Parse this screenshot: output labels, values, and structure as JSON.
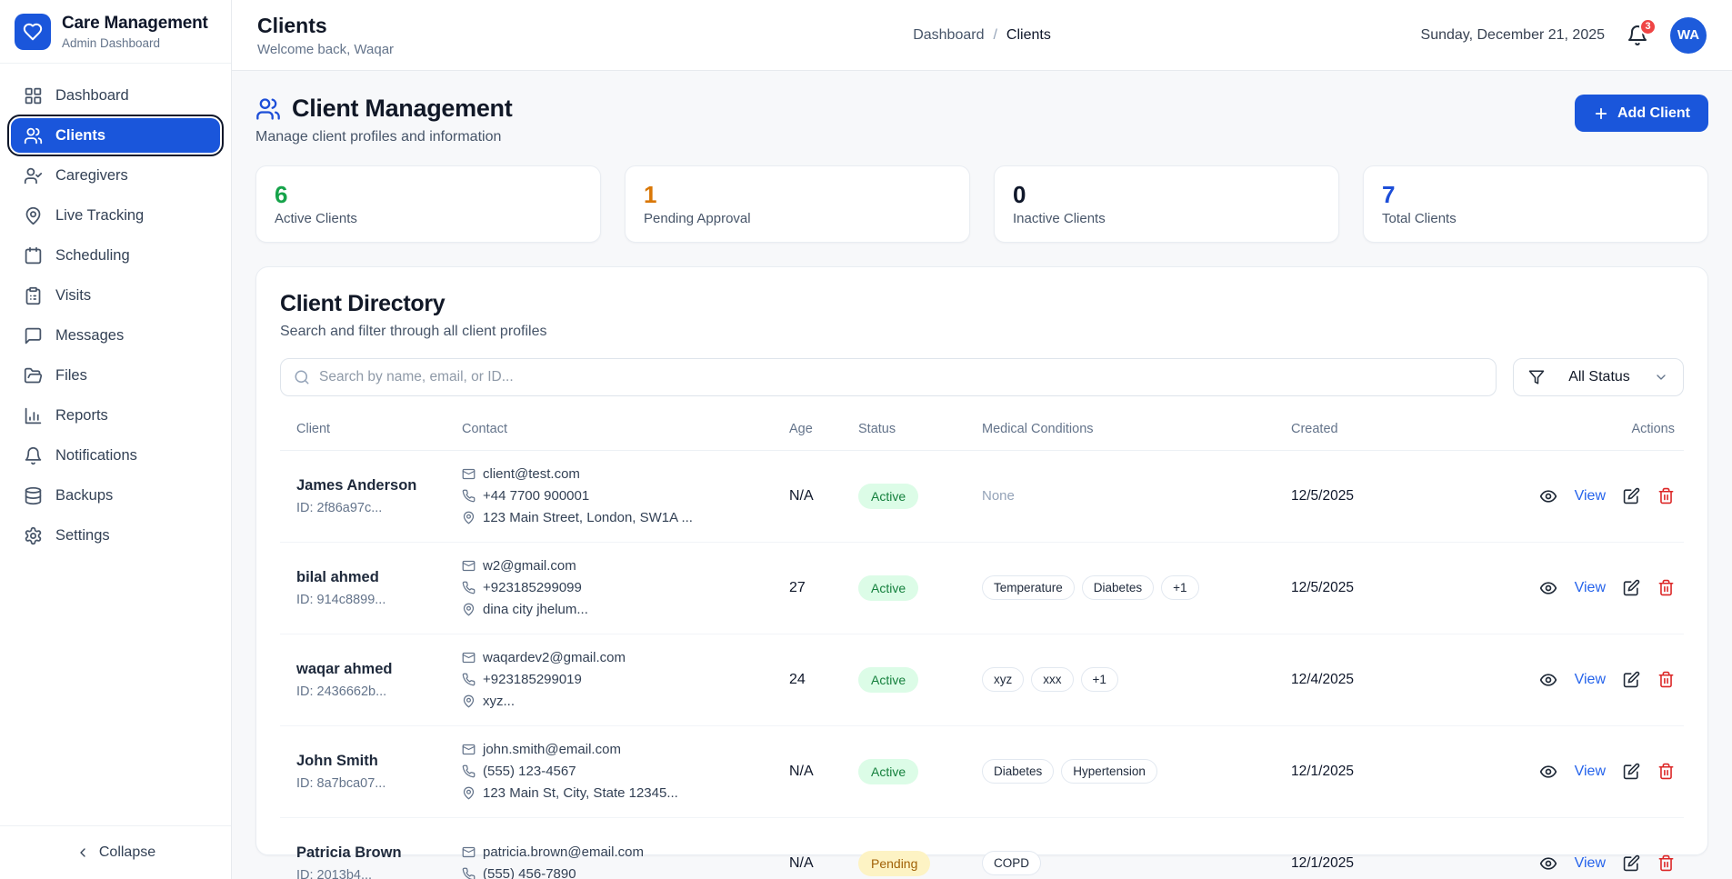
{
  "brand": {
    "name": "Care Management",
    "subtitle": "Admin Dashboard"
  },
  "sidebar": {
    "items": [
      {
        "label": "Dashboard"
      },
      {
        "label": "Clients"
      },
      {
        "label": "Caregivers"
      },
      {
        "label": "Live Tracking"
      },
      {
        "label": "Scheduling"
      },
      {
        "label": "Visits"
      },
      {
        "label": "Messages"
      },
      {
        "label": "Files"
      },
      {
        "label": "Reports"
      },
      {
        "label": "Notifications"
      },
      {
        "label": "Backups"
      },
      {
        "label": "Settings"
      }
    ],
    "active_item": "Clients",
    "collapse_label": "Collapse"
  },
  "header": {
    "title": "Clients",
    "subtitle": "Welcome back, Waqar",
    "breadcrumb": {
      "parent": "Dashboard",
      "separator": "/",
      "current": "Clients"
    },
    "date": "Sunday, December 21, 2025",
    "notification_count": "3",
    "avatar_initials": "WA"
  },
  "page": {
    "title": "Client Management",
    "subtitle": "Manage client profiles and information",
    "add_button_label": "Add Client"
  },
  "stats": [
    {
      "value": "6",
      "label": "Active Clients",
      "color": "#16a34a"
    },
    {
      "value": "1",
      "label": "Pending Approval",
      "color": "#d97706"
    },
    {
      "value": "0",
      "label": "Inactive Clients",
      "color": "#0f172a"
    },
    {
      "value": "7",
      "label": "Total Clients",
      "color": "#1d4ed8"
    }
  ],
  "directory": {
    "title": "Client Directory",
    "subtitle": "Search and filter through all client profiles",
    "search_placeholder": "Search by name, email, or ID...",
    "filter_label": "All Status"
  },
  "table": {
    "headers": [
      "Client",
      "Contact",
      "Age",
      "Status",
      "Medical Conditions",
      "Created",
      "Actions"
    ],
    "view_label": "View",
    "rows": [
      {
        "name": "James Anderson",
        "id": "ID: 2f86a97c...",
        "email": "client@test.com",
        "phone": "+44 7700 900001",
        "address": "123 Main Street, London, SW1A ...",
        "age": "N/A",
        "status": "Active",
        "conditions": [],
        "conditions_empty": "None",
        "created": "12/5/2025"
      },
      {
        "name": "bilal ahmed",
        "id": "ID: 914c8899...",
        "email": "w2@gmail.com",
        "phone": "+923185299099",
        "address": "dina city jhelum...",
        "age": "27",
        "status": "Active",
        "conditions": [
          "Temperature",
          "Diabetes",
          "+1"
        ],
        "created": "12/5/2025"
      },
      {
        "name": "waqar ahmed",
        "id": "ID: 2436662b...",
        "email": "waqardev2@gmail.com",
        "phone": "+923185299019",
        "address": "xyz...",
        "age": "24",
        "status": "Active",
        "conditions": [
          "xyz",
          "xxx",
          "+1"
        ],
        "created": "12/4/2025"
      },
      {
        "name": "John Smith",
        "id": "ID: 8a7bca07...",
        "email": "john.smith@email.com",
        "phone": "(555) 123-4567",
        "address": "123 Main St, City, State 12345...",
        "age": "N/A",
        "status": "Active",
        "conditions": [
          "Diabetes",
          "Hypertension"
        ],
        "created": "12/1/2025"
      },
      {
        "name": "Patricia Brown",
        "id": "ID: 2013b4...",
        "email": "patricia.brown@email.com",
        "phone": "(555) 456-7890",
        "address": "",
        "age": "N/A",
        "status": "Pending",
        "conditions": [
          "COPD"
        ],
        "created": "12/1/2025"
      }
    ]
  },
  "colors": {
    "accent_blue": "#1a56db",
    "active_pill_bg": "#dcfce7",
    "active_pill_text": "#15803d",
    "pending_pill_bg": "#fdf3c4",
    "pending_pill_text": "#a16207",
    "danger": "#dc2626",
    "badge_red": "#ef4444"
  }
}
